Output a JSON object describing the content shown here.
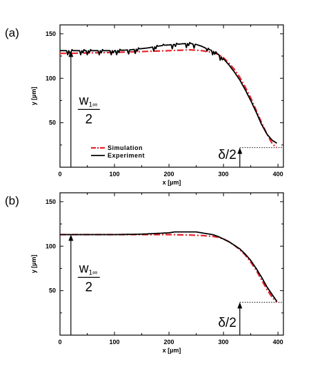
{
  "chart_data": [
    {
      "type": "line",
      "panel_label": "(a)",
      "xlabel": "x [µm]",
      "ylabel": "y [µm]",
      "xlim": [
        0,
        410
      ],
      "ylim": [
        0,
        160
      ],
      "x_ticks": [
        0,
        100,
        200,
        300,
        400
      ],
      "y_ticks": [
        50,
        100,
        150
      ],
      "grid": false,
      "legend": {
        "placement": "bottom-left",
        "entries": [
          "Simulation",
          "Experiment"
        ]
      },
      "annotations": {
        "w_label": "w",
        "w_subscript": "1∞",
        "w_denominator": "2",
        "w_arrow_x": 20,
        "delta_label": "δ/2",
        "delta_arrow_x": 330,
        "delta_level": 22
      },
      "series": [
        {
          "name": "Simulation",
          "style": "dash-dot",
          "color": "#e8202a",
          "x": [
            0,
            20,
            50,
            100,
            150,
            200,
            240,
            260,
            280,
            290,
            300,
            310,
            320,
            330,
            340,
            350,
            360,
            370,
            380,
            390,
            398
          ],
          "y": [
            128,
            128,
            128.5,
            129,
            130,
            131,
            132,
            131,
            129,
            127,
            123,
            117,
            110,
            101,
            90,
            78,
            64,
            50,
            37,
            26,
            22
          ]
        },
        {
          "name": "Experiment",
          "style": "solid",
          "color": "#000000",
          "x": [
            0,
            20,
            50,
            100,
            130,
            160,
            190,
            210,
            230,
            240,
            250,
            260,
            270,
            280,
            290,
            300,
            310,
            320,
            330,
            340,
            350,
            360,
            370,
            380,
            390,
            398
          ],
          "y": [
            131,
            131,
            131,
            131,
            132,
            134,
            137,
            138,
            139,
            139,
            138,
            136,
            133,
            131,
            127,
            122,
            115,
            107,
            98,
            87,
            75,
            62,
            48,
            37,
            30,
            27
          ]
        }
      ]
    },
    {
      "type": "line",
      "panel_label": "(b)",
      "xlabel": "x [µm]",
      "ylabel": "y [µm]",
      "xlim": [
        0,
        410
      ],
      "ylim": [
        0,
        160
      ],
      "x_ticks": [
        0,
        100,
        200,
        300,
        400
      ],
      "y_ticks": [
        50,
        100,
        150
      ],
      "grid": false,
      "annotations": {
        "w_label": "w",
        "w_subscript": "1∞",
        "w_denominator": "2",
        "w_arrow_x": 20,
        "delta_label": "δ/2",
        "delta_arrow_x": 330,
        "delta_level": 37
      },
      "series": [
        {
          "name": "Simulation",
          "style": "dash-dot",
          "color": "#e8202a",
          "x": [
            0,
            50,
            100,
            150,
            200,
            240,
            260,
            280,
            290,
            300,
            310,
            320,
            330,
            340,
            350,
            360,
            370,
            380,
            390,
            398
          ],
          "y": [
            113,
            113,
            113,
            113,
            113,
            112.5,
            112,
            111,
            110,
            108,
            105,
            101,
            96,
            90,
            82,
            73,
            62,
            51,
            42,
            37
          ]
        },
        {
          "name": "Experiment",
          "style": "solid",
          "color": "#000000",
          "x": [
            0,
            50,
            100,
            150,
            200,
            210,
            250,
            260,
            280,
            290,
            300,
            310,
            320,
            330,
            340,
            350,
            360,
            370,
            380,
            390,
            398
          ],
          "y": [
            113,
            113,
            113,
            113.5,
            115,
            116,
            116,
            115,
            113,
            111,
            108,
            105,
            101,
            97,
            91,
            84,
            75,
            65,
            54,
            45,
            38
          ]
        }
      ]
    }
  ]
}
